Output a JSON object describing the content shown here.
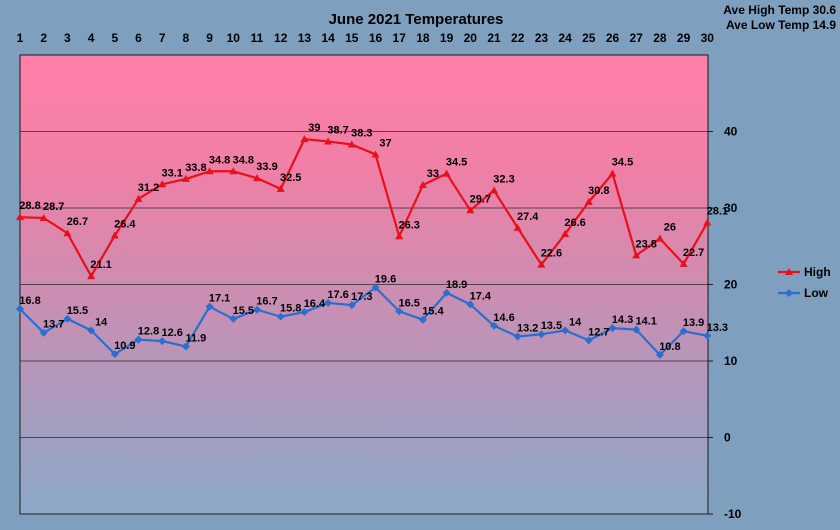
{
  "chart_data": {
    "type": "line",
    "title": "June 2021 Temperatures",
    "annotations": [
      "Ave High Temp 30.6",
      "Ave Low Temp 14.9"
    ],
    "x": [
      1,
      2,
      3,
      4,
      5,
      6,
      7,
      8,
      9,
      10,
      11,
      12,
      13,
      14,
      15,
      16,
      17,
      18,
      19,
      20,
      21,
      22,
      23,
      24,
      25,
      26,
      27,
      28,
      29,
      30
    ],
    "ylim": [
      -10,
      50
    ],
    "yticks": [
      -10,
      0,
      10,
      20,
      30,
      40
    ],
    "grid": true,
    "legend": "right",
    "series": [
      {
        "name": "High",
        "color": "#e8101a",
        "marker": "triangle",
        "values": [
          28.8,
          28.7,
          26.7,
          21.1,
          26.4,
          31.2,
          33.1,
          33.8,
          34.8,
          34.8,
          33.9,
          32.5,
          39,
          38.7,
          38.3,
          37,
          26.3,
          33,
          34.5,
          29.7,
          32.3,
          27.4,
          22.6,
          26.6,
          30.8,
          34.5,
          23.8,
          26,
          22.7,
          28.1
        ]
      },
      {
        "name": "Low",
        "color": "#2a6fd0",
        "marker": "diamond",
        "values": [
          16.8,
          13.7,
          15.5,
          14,
          10.9,
          12.8,
          12.6,
          11.9,
          17.1,
          15.5,
          16.7,
          15.8,
          16.4,
          17.6,
          17.3,
          19.6,
          16.5,
          15.4,
          18.9,
          17.4,
          14.6,
          13.2,
          13.5,
          14,
          12.7,
          14.3,
          14.1,
          10.8,
          13.9,
          13.3
        ]
      }
    ],
    "background_colors": {
      "top": "#ff80a8",
      "bottom": "#8aa8c8",
      "page": "#7f9fbf"
    }
  }
}
